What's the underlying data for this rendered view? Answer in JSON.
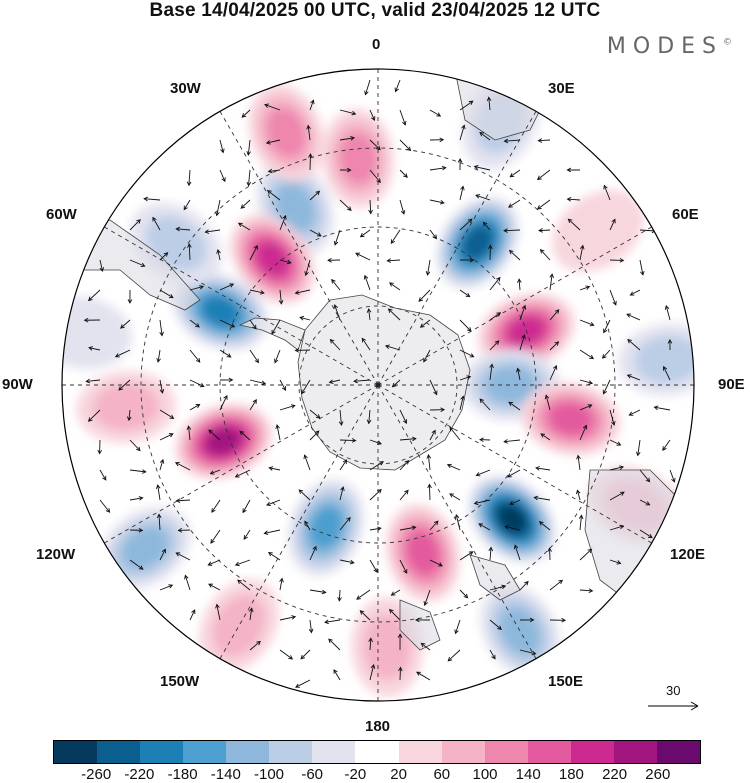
{
  "title": "Base 14/04/2025 00 UTC, valid 23/04/2025 12 UTC",
  "brand": "MODES",
  "brand_mark": "©",
  "longitude_labels": {
    "n0": "0",
    "n30e": "30E",
    "n60e": "60E",
    "n90e": "90E",
    "n120e": "120E",
    "n150e": "150E",
    "n180": "180",
    "n150w": "150W",
    "n120w": "120W",
    "n90w": "90W",
    "n60w": "60W",
    "n30w": "30W"
  },
  "reference_vector": {
    "label": "30"
  },
  "colorbar": {
    "colors": [
      "#053a5e",
      "#0a5f8f",
      "#1c7fb5",
      "#4c9fcf",
      "#8db8dc",
      "#bccde6",
      "#e3e3f0",
      "#ffffff",
      "#f8d6dd",
      "#f4b3c6",
      "#ee86ad",
      "#e35a9e",
      "#cc2a91",
      "#a3157f",
      "#6b0a6e"
    ],
    "ticks": [
      "-260",
      "-220",
      "-180",
      "-140",
      "-100",
      "-60",
      "-20",
      "20",
      "60",
      "100",
      "140",
      "180",
      "220",
      "260"
    ]
  },
  "anomaly_cells": [
    {
      "lon": -25,
      "r": 0.62,
      "v": -100
    },
    {
      "lon": -5,
      "r": 0.72,
      "v": 120
    },
    {
      "lon": 35,
      "r": 0.55,
      "v": -220
    },
    {
      "lon": 25,
      "r": 0.92,
      "v": -60
    },
    {
      "lon": -40,
      "r": 0.52,
      "v": 200
    },
    {
      "lon": -20,
      "r": 0.85,
      "v": 100
    },
    {
      "lon": 70,
      "r": 0.5,
      "v": 180
    },
    {
      "lon": -65,
      "r": 0.55,
      "v": -200
    },
    {
      "lon": -55,
      "r": 0.78,
      "v": -60
    },
    {
      "lon": 90,
      "r": 0.42,
      "v": -120
    },
    {
      "lon": 100,
      "r": 0.62,
      "v": 140
    },
    {
      "lon": 85,
      "r": 0.92,
      "v": -80
    },
    {
      "lon": -110,
      "r": 0.52,
      "v": 220
    },
    {
      "lon": -95,
      "r": 0.8,
      "v": 60
    },
    {
      "lon": 135,
      "r": 0.6,
      "v": -260
    },
    {
      "lon": 165,
      "r": 0.55,
      "v": 160
    },
    {
      "lon": -160,
      "r": 0.48,
      "v": -160
    },
    {
      "lon": -125,
      "r": 0.9,
      "v": -100
    },
    {
      "lon": 150,
      "r": 0.9,
      "v": -100
    },
    {
      "lon": 178,
      "r": 0.83,
      "v": 80
    },
    {
      "lon": -150,
      "r": 0.88,
      "v": 60
    },
    {
      "lon": 115,
      "r": 0.9,
      "v": 60
    },
    {
      "lon": -80,
      "r": 0.95,
      "v": -40
    },
    {
      "lon": 55,
      "r": 0.85,
      "v": 40
    }
  ]
}
